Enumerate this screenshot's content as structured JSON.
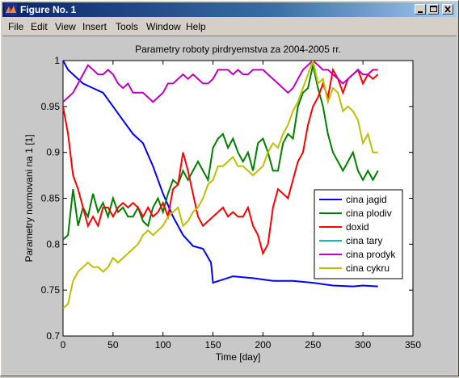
{
  "window": {
    "title": "Figure No. 1",
    "buttons": [
      "minimize",
      "maximize",
      "close"
    ]
  },
  "menu": {
    "file": "File",
    "edit": "Edit",
    "view": "View",
    "insert": "Insert",
    "tools": "Tools",
    "window": "Window",
    "help": "Help"
  },
  "icons": {
    "app": "matlab-logo-icon",
    "minimize": "minimize-icon",
    "maximize": "maximize-icon",
    "close": "close-icon"
  },
  "colors": {
    "axes_background": "#ffffff",
    "figure_background": "#c8c8c8",
    "titlebar": "#0a246a"
  },
  "chart_data": {
    "type": "line",
    "title": "Parametry roboty pirdryemstva za 2004-2005 rr.",
    "xlabel": "Time [day]",
    "ylabel": "Parametry normovani na 1 [1]",
    "xlim": [
      0,
      350
    ],
    "ylim": [
      0.7,
      1.0
    ],
    "xticks": [
      0,
      50,
      100,
      150,
      200,
      250,
      300,
      350
    ],
    "yticks": [
      0.7,
      0.75,
      0.8,
      0.85,
      0.9,
      0.95,
      1
    ],
    "ytick_labels": [
      "0.7",
      "0.75",
      "0.8",
      "0.85",
      "0.9",
      "0.95",
      "1"
    ],
    "grid": false,
    "legend_position": "right",
    "series": [
      {
        "name": "cina jagid",
        "color": "#0000ff",
        "x": [
          0,
          5,
          10,
          20,
          30,
          40,
          50,
          60,
          70,
          80,
          90,
          100,
          110,
          120,
          130,
          140,
          148,
          150,
          170,
          190,
          210,
          230,
          250,
          270,
          290,
          300,
          315
        ],
        "y": [
          1.0,
          0.99,
          0.985,
          0.975,
          0.97,
          0.965,
          0.95,
          0.935,
          0.92,
          0.91,
          0.885,
          0.855,
          0.83,
          0.81,
          0.798,
          0.795,
          0.78,
          0.758,
          0.765,
          0.763,
          0.76,
          0.76,
          0.758,
          0.755,
          0.754,
          0.755,
          0.754
        ]
      },
      {
        "name": "cina plodiv",
        "color": "#008000",
        "x": [
          0,
          5,
          10,
          15,
          20,
          25,
          30,
          35,
          40,
          45,
          50,
          55,
          60,
          65,
          70,
          75,
          80,
          85,
          90,
          95,
          100,
          105,
          110,
          115,
          120,
          125,
          130,
          135,
          140,
          145,
          150,
          155,
          160,
          165,
          170,
          175,
          180,
          185,
          190,
          195,
          200,
          205,
          210,
          215,
          220,
          225,
          230,
          235,
          240,
          245,
          250,
          255,
          260,
          265,
          270,
          275,
          280,
          285,
          290,
          295,
          300,
          305,
          310,
          315
        ],
        "y": [
          0.805,
          0.81,
          0.86,
          0.82,
          0.84,
          0.83,
          0.855,
          0.835,
          0.845,
          0.83,
          0.85,
          0.835,
          0.84,
          0.83,
          0.83,
          0.84,
          0.825,
          0.82,
          0.84,
          0.85,
          0.835,
          0.855,
          0.87,
          0.865,
          0.88,
          0.87,
          0.88,
          0.89,
          0.88,
          0.87,
          0.905,
          0.915,
          0.92,
          0.905,
          0.915,
          0.9,
          0.89,
          0.9,
          0.88,
          0.91,
          0.915,
          0.9,
          0.88,
          0.88,
          0.91,
          0.92,
          0.915,
          0.95,
          0.965,
          0.97,
          0.995,
          0.97,
          0.95,
          0.92,
          0.9,
          0.89,
          0.88,
          0.89,
          0.9,
          0.88,
          0.87,
          0.88,
          0.87,
          0.88
        ]
      },
      {
        "name": "doxid",
        "color": "#ff0000",
        "x": [
          0,
          5,
          10,
          15,
          20,
          25,
          30,
          35,
          40,
          45,
          50,
          55,
          60,
          65,
          70,
          75,
          80,
          85,
          90,
          95,
          100,
          105,
          110,
          115,
          120,
          125,
          130,
          135,
          140,
          145,
          150,
          155,
          160,
          165,
          170,
          175,
          180,
          185,
          190,
          195,
          200,
          205,
          210,
          215,
          220,
          225,
          230,
          235,
          240,
          245,
          250,
          255,
          260,
          265,
          270,
          275,
          280,
          285,
          290,
          295,
          300,
          305,
          310,
          315
        ],
        "y": [
          0.95,
          0.92,
          0.875,
          0.86,
          0.84,
          0.82,
          0.83,
          0.82,
          0.84,
          0.84,
          0.83,
          0.84,
          0.845,
          0.84,
          0.845,
          0.84,
          0.83,
          0.84,
          0.83,
          0.835,
          0.845,
          0.83,
          0.86,
          0.865,
          0.9,
          0.88,
          0.855,
          0.83,
          0.82,
          0.825,
          0.83,
          0.835,
          0.84,
          0.83,
          0.835,
          0.83,
          0.83,
          0.84,
          0.82,
          0.81,
          0.79,
          0.8,
          0.84,
          0.86,
          0.855,
          0.85,
          0.87,
          0.89,
          0.9,
          0.93,
          0.95,
          0.96,
          0.975,
          0.96,
          0.99,
          0.98,
          0.965,
          0.98,
          0.985,
          0.99,
          0.975,
          0.985,
          0.98,
          0.985
        ]
      },
      {
        "name": "cina tary",
        "color": "#00bfbf",
        "x": [],
        "y": []
      },
      {
        "name": "cina prodyk",
        "color": "#bf00bf",
        "x": [
          0,
          5,
          10,
          15,
          20,
          25,
          30,
          35,
          40,
          45,
          50,
          55,
          60,
          65,
          70,
          75,
          80,
          85,
          90,
          95,
          100,
          105,
          110,
          115,
          120,
          125,
          130,
          135,
          140,
          145,
          150,
          155,
          160,
          165,
          170,
          175,
          180,
          185,
          190,
          195,
          200,
          205,
          210,
          215,
          220,
          225,
          230,
          235,
          240,
          245,
          250,
          255,
          260,
          265,
          270,
          275,
          280,
          285,
          290,
          295,
          300,
          305,
          310,
          315
        ],
        "y": [
          0.955,
          0.96,
          0.965,
          0.975,
          0.985,
          0.995,
          0.99,
          0.985,
          0.985,
          0.99,
          0.985,
          0.975,
          0.97,
          0.975,
          0.965,
          0.965,
          0.965,
          0.96,
          0.955,
          0.96,
          0.965,
          0.975,
          0.975,
          0.98,
          0.985,
          0.98,
          0.985,
          0.98,
          0.975,
          0.975,
          0.98,
          0.99,
          0.99,
          0.99,
          0.985,
          0.99,
          0.985,
          0.985,
          0.99,
          0.99,
          0.99,
          0.985,
          0.98,
          0.975,
          0.97,
          0.965,
          0.97,
          0.98,
          0.99,
          0.995,
          1.0,
          0.995,
          0.99,
          0.99,
          0.985,
          0.98,
          0.975,
          0.98,
          0.985,
          0.99,
          0.985,
          0.985,
          0.99,
          0.99
        ]
      },
      {
        "name": "cina cykru",
        "color": "#bfbf00",
        "x": [
          0,
          5,
          10,
          15,
          20,
          25,
          30,
          35,
          40,
          45,
          50,
          55,
          60,
          65,
          70,
          75,
          80,
          85,
          90,
          95,
          100,
          105,
          110,
          115,
          120,
          125,
          130,
          135,
          140,
          145,
          150,
          155,
          160,
          165,
          170,
          175,
          180,
          185,
          190,
          195,
          200,
          205,
          210,
          215,
          220,
          225,
          230,
          235,
          240,
          245,
          250,
          255,
          260,
          265,
          270,
          275,
          280,
          285,
          290,
          295,
          300,
          305,
          310,
          315
        ],
        "y": [
          0.73,
          0.735,
          0.76,
          0.77,
          0.775,
          0.78,
          0.775,
          0.775,
          0.77,
          0.775,
          0.785,
          0.78,
          0.785,
          0.79,
          0.795,
          0.8,
          0.81,
          0.815,
          0.81,
          0.815,
          0.82,
          0.83,
          0.835,
          0.84,
          0.82,
          0.825,
          0.835,
          0.84,
          0.85,
          0.865,
          0.87,
          0.885,
          0.885,
          0.89,
          0.895,
          0.885,
          0.885,
          0.88,
          0.875,
          0.88,
          0.885,
          0.9,
          0.91,
          0.905,
          0.92,
          0.93,
          0.945,
          0.955,
          0.97,
          0.985,
          1.0,
          0.975,
          0.98,
          0.955,
          0.97,
          0.965,
          0.945,
          0.95,
          0.945,
          0.935,
          0.91,
          0.92,
          0.9,
          0.9
        ]
      }
    ]
  }
}
